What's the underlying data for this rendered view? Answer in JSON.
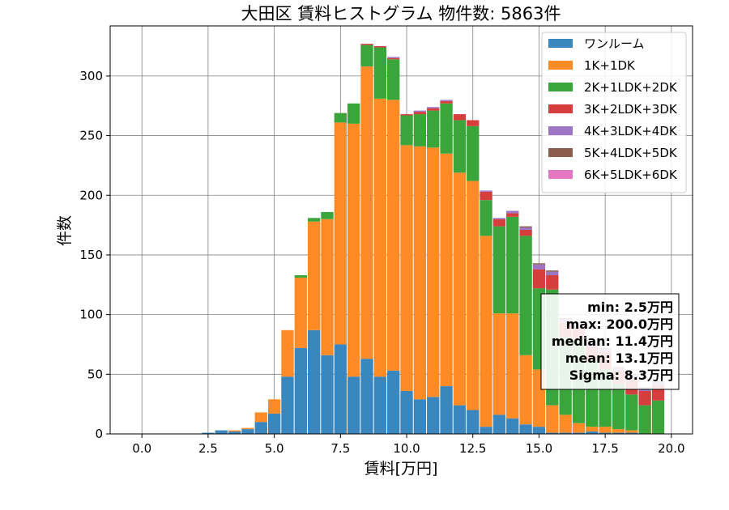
{
  "chart_data": {
    "type": "bar",
    "stacked": true,
    "title": "大田区 賃料ヒストグラム 物件数: 5863件",
    "xlabel": "賃料[万円]",
    "ylabel": "件数",
    "xlim": [
      -1.2,
      20.8
    ],
    "ylim": [
      0,
      342
    ],
    "xticks": [
      "0.0",
      "2.5",
      "5.0",
      "7.5",
      "10.0",
      "12.5",
      "15.0",
      "17.5",
      "20.0"
    ],
    "yticks": [
      "0",
      "50",
      "100",
      "150",
      "200",
      "250",
      "300"
    ],
    "grid": true,
    "legend_position": "top-right",
    "bin_width": 0.5,
    "bins": [
      2.5,
      3.0,
      3.5,
      4.0,
      4.5,
      5.0,
      5.5,
      6.0,
      6.5,
      7.0,
      7.5,
      8.0,
      8.5,
      9.0,
      9.5,
      10.0,
      10.5,
      11.0,
      11.5,
      12.0,
      12.5,
      13.0,
      13.5,
      14.0,
      14.5,
      15.0,
      15.5,
      16.0,
      16.5,
      17.0,
      17.5,
      18.0,
      18.5,
      19.0,
      19.5
    ],
    "series": [
      {
        "name": "ワンルーム",
        "color": "#3a87c0",
        "values": [
          1,
          3,
          2,
          4,
          10,
          17,
          48,
          72,
          87,
          66,
          75,
          48,
          63,
          48,
          53,
          36,
          29,
          31,
          40,
          24,
          20,
          6,
          16,
          13,
          8,
          6,
          1,
          1,
          1,
          2,
          1,
          1,
          1,
          0,
          0
        ]
      },
      {
        "name": "1K+1DK",
        "color": "#fe8b26",
        "values": [
          0,
          0,
          1,
          1,
          8,
          12,
          39,
          59,
          91,
          114,
          186,
          212,
          245,
          233,
          227,
          206,
          212,
          209,
          195,
          195,
          192,
          160,
          85,
          88,
          58,
          48,
          23,
          15,
          8,
          4,
          5,
          3,
          2,
          0,
          0
        ]
      },
      {
        "name": "2K+1LDK+2DK",
        "color": "#3aa53a",
        "values": [
          0,
          0,
          0,
          0,
          0,
          0,
          0,
          2,
          3,
          6,
          8,
          17,
          18,
          43,
          34,
          25,
          27,
          31,
          42,
          44,
          46,
          30,
          73,
          81,
          100,
          68,
          97,
          65,
          70,
          55,
          48,
          38,
          30,
          24,
          28
        ]
      },
      {
        "name": "3K+2LDK+3DK",
        "color": "#d63d3d",
        "values": [
          0,
          0,
          0,
          0,
          0,
          0,
          0,
          0,
          0,
          0,
          0,
          0,
          1,
          1,
          1,
          1,
          2,
          2,
          2,
          5,
          5,
          7,
          6,
          3,
          5,
          16,
          12,
          12,
          10,
          12,
          15,
          11,
          13,
          12,
          13
        ]
      },
      {
        "name": "4K+3LDK+4DK",
        "color": "#9c75c4",
        "values": [
          0,
          0,
          0,
          0,
          0,
          0,
          0,
          0,
          0,
          0,
          0,
          0,
          0,
          0,
          1,
          0,
          1,
          1,
          1,
          0,
          0,
          1,
          1,
          2,
          2,
          4,
          3,
          3,
          2,
          3,
          2,
          2,
          3,
          2,
          2
        ]
      },
      {
        "name": "5K+4LDK+5DK",
        "color": "#8b5d4c",
        "values": [
          0,
          0,
          0,
          0,
          0,
          0,
          0,
          0,
          0,
          0,
          0,
          0,
          0,
          0,
          0,
          0,
          0,
          0,
          0,
          0,
          0,
          0,
          0,
          0,
          1,
          1,
          1,
          1,
          0,
          1,
          1,
          1,
          1,
          1,
          1
        ]
      },
      {
        "name": "6K+5LDK+6DK",
        "color": "#e377c2",
        "values": [
          0,
          0,
          0,
          0,
          0,
          0,
          0,
          0,
          0,
          0,
          0,
          0,
          0,
          0,
          0,
          0,
          0,
          0,
          0,
          0,
          0,
          0,
          0,
          0,
          0,
          0,
          0,
          0,
          0,
          0,
          0,
          0,
          0,
          0,
          0
        ]
      }
    ],
    "stats": {
      "lines": [
        "min: 2.5万円",
        "max: 200.0万円",
        "median: 11.4万円",
        "mean: 13.1万円",
        "Sigma: 8.3万円"
      ]
    }
  }
}
